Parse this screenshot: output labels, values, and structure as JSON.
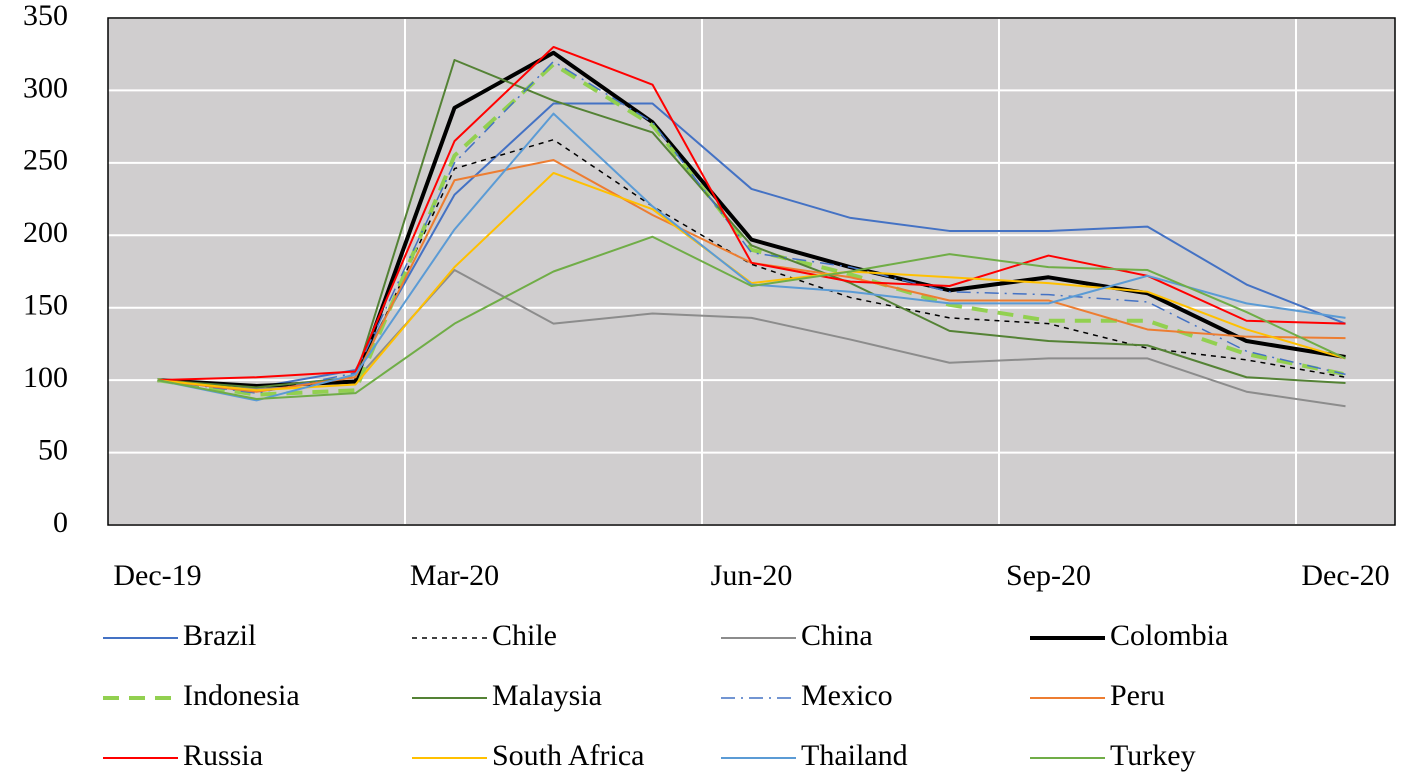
{
  "chart_data": {
    "type": "line",
    "categories": [
      "Dec-19",
      null,
      null,
      "Mar-20",
      null,
      null,
      "Jun-20",
      null,
      null,
      "Sep-20",
      null,
      null,
      "Dec-20"
    ],
    "ylim": [
      0,
      350
    ],
    "yticks": [
      0,
      50,
      100,
      150,
      200,
      250,
      300,
      350
    ],
    "grid": true,
    "series": [
      {
        "name": "Brazil",
        "color": "#4472c4",
        "dash": "solid",
        "linewidth": 2,
        "values": [
          100,
          95,
          107,
          228,
          291,
          291,
          232,
          212,
          203,
          203,
          206,
          166,
          139
        ]
      },
      {
        "name": "Chile",
        "color": "#000000",
        "dash": "dashed",
        "linewidth": 1.5,
        "values": [
          100,
          94,
          100,
          246,
          266,
          220,
          180,
          157,
          143,
          139,
          122,
          114,
          102
        ]
      },
      {
        "name": "China",
        "color": "#8c8c8c",
        "dash": "solid",
        "linewidth": 2,
        "values": [
          100,
          94,
          100,
          176,
          139,
          146,
          143,
          128,
          112,
          115,
          115,
          92,
          82
        ]
      },
      {
        "name": "Colombia",
        "color": "#000000",
        "dash": "solid",
        "linewidth": 4,
        "values": [
          100,
          96,
          99,
          288,
          326,
          278,
          197,
          178,
          162,
          171,
          160,
          127,
          116
        ]
      },
      {
        "name": "Indonesia",
        "color": "#92d050",
        "dash": "long-dash",
        "linewidth": 4,
        "values": [
          100,
          90,
          93,
          255,
          318,
          276,
          190,
          173,
          152,
          141,
          141,
          118,
          104
        ]
      },
      {
        "name": "Malaysia",
        "color": "#548235",
        "dash": "solid",
        "linewidth": 2,
        "values": [
          100,
          95,
          102,
          321,
          293,
          271,
          193,
          167,
          134,
          127,
          124,
          102,
          98
        ]
      },
      {
        "name": "Mexico",
        "color": "#4472c4",
        "dash": "dash-dot",
        "linewidth": 1.5,
        "values": [
          100,
          91,
          105,
          250,
          320,
          278,
          188,
          178,
          161,
          159,
          154,
          120,
          104
        ]
      },
      {
        "name": "Peru",
        "color": "#ed7d31",
        "dash": "solid",
        "linewidth": 2,
        "values": [
          100,
          92,
          102,
          238,
          252,
          214,
          181,
          171,
          155,
          155,
          135,
          130,
          129
        ]
      },
      {
        "name": "Russia",
        "color": "#ff0000",
        "dash": "solid",
        "linewidth": 2,
        "values": [
          100,
          102,
          106,
          265,
          330,
          304,
          181,
          168,
          165,
          186,
          172,
          141,
          139
        ]
      },
      {
        "name": "South Africa",
        "color": "#ffc000",
        "dash": "solid",
        "linewidth": 2,
        "values": [
          100,
          93,
          97,
          178,
          243,
          218,
          167,
          175,
          171,
          167,
          161,
          135,
          115
        ]
      },
      {
        "name": "Thailand",
        "color": "#5b9bd5",
        "dash": "solid",
        "linewidth": 2,
        "values": [
          100,
          86,
          104,
          204,
          284,
          220,
          166,
          161,
          153,
          153,
          172,
          153,
          143
        ]
      },
      {
        "name": "Turkey",
        "color": "#70ad47",
        "dash": "solid",
        "linewidth": 2,
        "values": [
          100,
          87,
          91,
          139,
          175,
          199,
          165,
          175,
          187,
          178,
          176,
          147,
          115
        ]
      }
    ]
  }
}
